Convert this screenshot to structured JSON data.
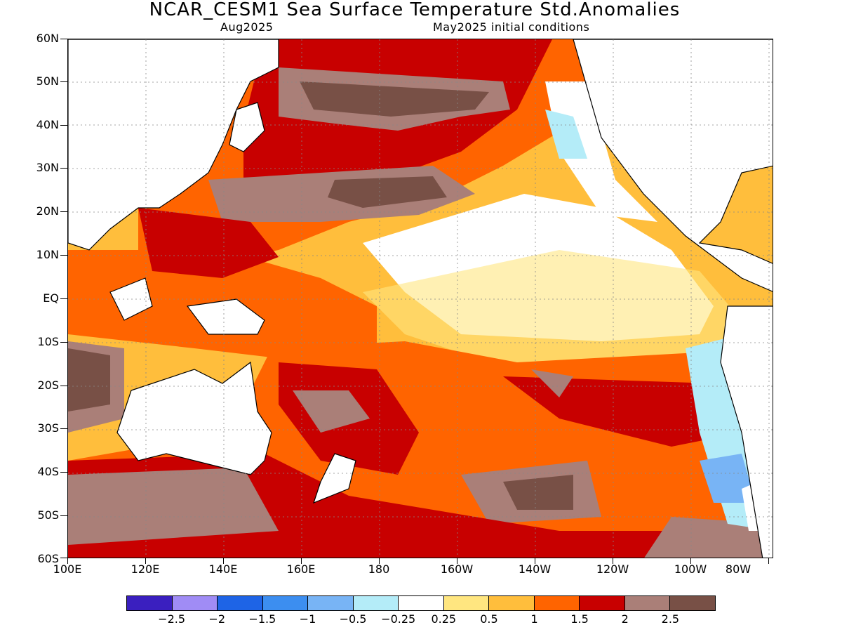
{
  "title": "NCAR_CESM1 Sea Surface Temperature Std.Anomalies",
  "subtitle_left": "Aug2025",
  "subtitle_right": "May2025 initial conditions",
  "lat_labels": [
    "60N",
    "50N",
    "40N",
    "30N",
    "20N",
    "10N",
    "EQ",
    "10S",
    "20S",
    "30S",
    "40S",
    "50S",
    "60S"
  ],
  "lon_labels": [
    "100E",
    "120E",
    "140E",
    "160E",
    "180",
    "160W",
    "140W",
    "120W",
    "100W",
    "80W"
  ],
  "colorbar": {
    "colors": [
      "#3a1fbf",
      "#a08cf5",
      "#1e64e6",
      "#3c8ef0",
      "#78b4f5",
      "#b4ecf8",
      "#ffffff",
      "#ffe680",
      "#ffbe3c",
      "#ff6400",
      "#c80000",
      "#aa7f78",
      "#785046"
    ],
    "labels": [
      "−2.5",
      "−2",
      "−1.5",
      "−1",
      "−0.5",
      "−0.25",
      "0.25",
      "0.5",
      "1",
      "1.5",
      "2",
      "2.5"
    ]
  }
}
